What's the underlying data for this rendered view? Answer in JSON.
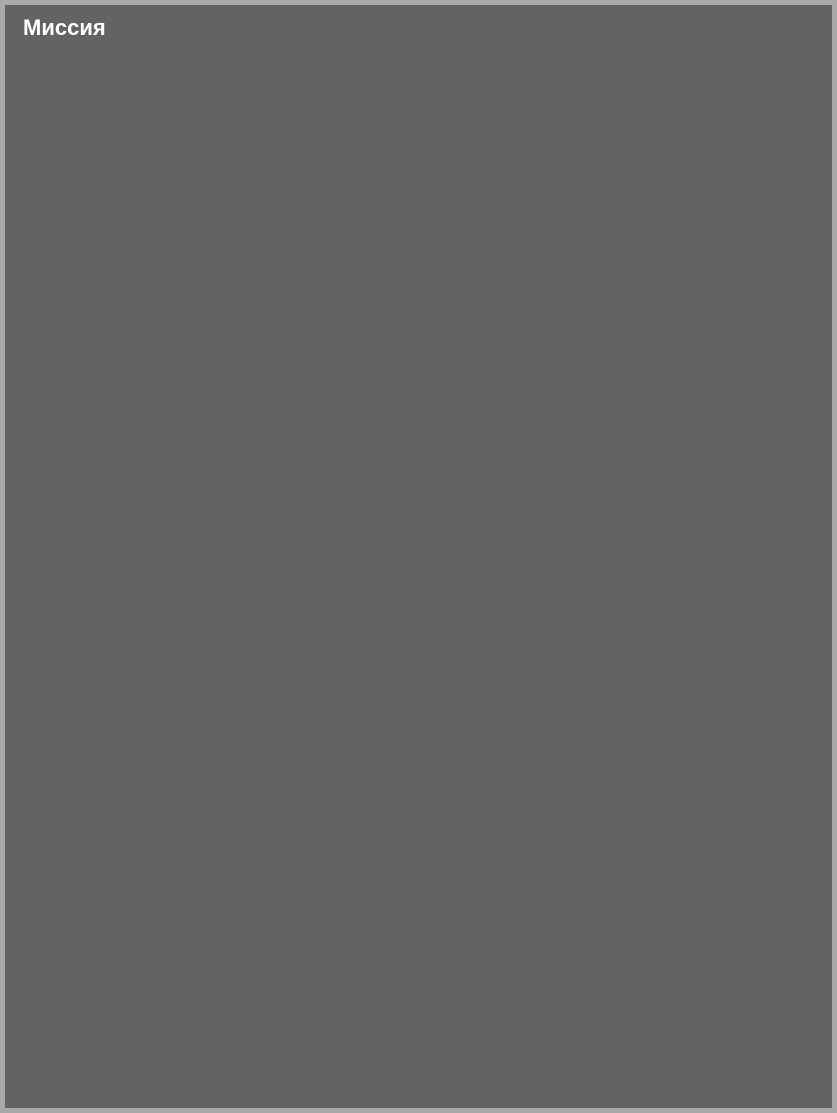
{
  "panel": {
    "title": "Миссия",
    "background_color": "#636363",
    "border_color": "#a9a9a9",
    "title_color": "#ffffff",
    "title_fontsize": 22,
    "title_fontweight": "bold"
  }
}
